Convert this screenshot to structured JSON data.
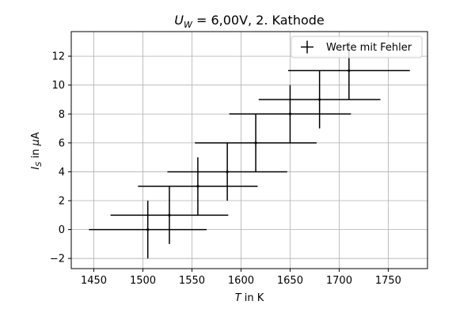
{
  "chart_data": {
    "type": "scatter",
    "title": "U_W = 6,00V, 2. Kathode",
    "title_parts": {
      "main": "U",
      "sub": "W",
      "rest": " = 6,00V, 2. Kathode"
    },
    "xlabel": "T in K",
    "xlabel_parts": {
      "var": "T",
      "rest": " in K"
    },
    "ylabel": "I_S in µA",
    "ylabel_parts": {
      "var": "I",
      "sub": "S",
      "rest": " in ",
      "mu": "µ",
      "unit": "A"
    },
    "xlim": [
      1427,
      1790
    ],
    "ylim": [
      -2.7,
      13.7
    ],
    "xticks": [
      1450,
      1500,
      1550,
      1600,
      1650,
      1700,
      1750
    ],
    "yticks": [
      -2,
      0,
      2,
      4,
      6,
      8,
      10,
      12
    ],
    "ytick_labels": [
      "−2",
      "0",
      "2",
      "4",
      "6",
      "8",
      "10",
      "12"
    ],
    "grid": true,
    "legend": {
      "position": "top-right",
      "label": "Werte mit Fehler"
    },
    "series": [
      {
        "name": "Werte mit Fehler",
        "color": "#000000",
        "points": [
          {
            "x": 1505,
            "y": 0,
            "xerr": 60,
            "yerr": 2
          },
          {
            "x": 1527,
            "y": 1,
            "xerr": 60,
            "yerr": 2
          },
          {
            "x": 1556,
            "y": 3,
            "xerr": 61,
            "yerr": 2
          },
          {
            "x": 1586,
            "y": 4,
            "xerr": 61,
            "yerr": 2
          },
          {
            "x": 1615,
            "y": 6,
            "xerr": 62,
            "yerr": 2
          },
          {
            "x": 1650,
            "y": 8,
            "xerr": 62,
            "yerr": 2
          },
          {
            "x": 1680,
            "y": 9,
            "xerr": 62,
            "yerr": 2
          },
          {
            "x": 1710,
            "y": 11,
            "xerr": 62,
            "yerr": 2
          }
        ]
      }
    ]
  }
}
